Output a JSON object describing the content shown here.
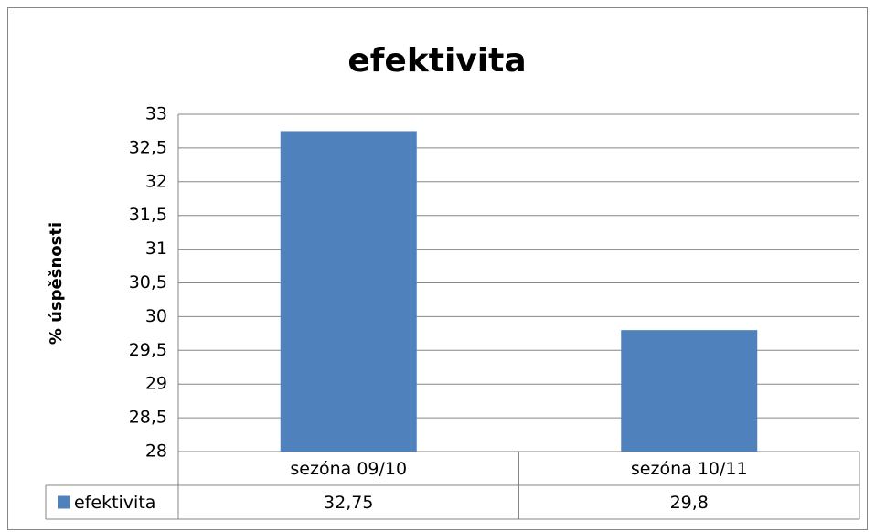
{
  "chart_data": {
    "type": "bar",
    "title": "efektivita",
    "y_label": "% úspěšnosti",
    "categories": [
      "sezóna 09/10",
      "sezóna 10/11"
    ],
    "series": [
      {
        "name": "efektivita",
        "color": "#4f81bd",
        "values": [
          32.75,
          29.8
        ],
        "value_labels": [
          "32,75",
          "29,8"
        ]
      }
    ],
    "ylim": [
      28,
      33
    ],
    "yticks": [
      28,
      {
        "value": 28.5,
        "label": "28,5"
      },
      29,
      {
        "value": 29.5,
        "label": "29,5"
      },
      30,
      {
        "value": 30.5,
        "label": "30,5"
      },
      31,
      {
        "value": 31.5,
        "label": "31,5"
      },
      32,
      {
        "value": 32.5,
        "label": "32,5"
      },
      33
    ],
    "grid": true,
    "legend": "data-table"
  }
}
